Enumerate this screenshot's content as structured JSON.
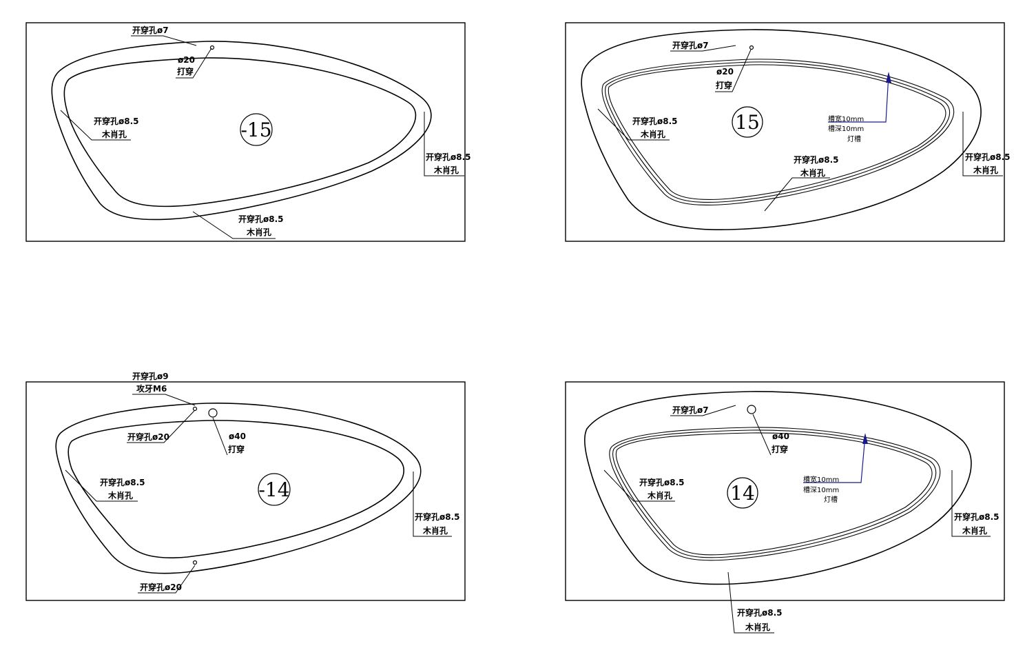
{
  "panels": [
    {
      "id": "top-left",
      "number": "-15",
      "labels": {
        "hole7": "开穿孔ø7",
        "d20": "ø20",
        "through": "打穿",
        "left_hole": "开穿孔ø8.5",
        "left_pin": "木肖孔",
        "right_hole": "开穿孔ø8.5",
        "right_pin": "木肖孔",
        "bottom_hole": "开穿孔ø8.5",
        "bottom_pin": "木肖孔"
      }
    },
    {
      "id": "top-right",
      "number": "15",
      "labels": {
        "hole7": "开穿孔ø7",
        "d20": "ø20",
        "through": "打穿",
        "left_hole": "开穿孔ø8.5",
        "left_pin": "木肖孔",
        "mid_hole": "开穿孔ø8.5",
        "mid_pin": "木肖孔",
        "right_hole": "开穿孔ø8.5",
        "right_pin": "木肖孔",
        "groove_width": "槽宽10mm",
        "groove_depth": "槽深10mm",
        "groove_name": "灯槽"
      }
    },
    {
      "id": "bottom-left",
      "number": "-14",
      "labels": {
        "hole9": "开穿孔ø9",
        "tap": "攻牙M6",
        "hole20_top": "开穿孔ø20",
        "d40": "ø40",
        "through": "打穿",
        "left_hole": "开穿孔ø8.5",
        "left_pin": "木肖孔",
        "right_hole": "开穿孔ø8.5",
        "right_pin": "木肖孔",
        "hole20_bottom": "开穿孔ø20"
      }
    },
    {
      "id": "bottom-right",
      "number": "14",
      "labels": {
        "hole7": "开穿孔ø7",
        "d40": "ø40",
        "through": "打穿",
        "left_hole": "开穿孔ø8.5",
        "left_pin": "木肖孔",
        "right_hole": "开穿孔ø8.5",
        "right_pin": "木肖孔",
        "bottom_hole": "开穿孔ø8.5",
        "bottom_pin": "木肖孔",
        "groove_width": "槽宽10mm",
        "groove_depth": "槽深10mm",
        "groove_name": "灯槽"
      }
    }
  ]
}
